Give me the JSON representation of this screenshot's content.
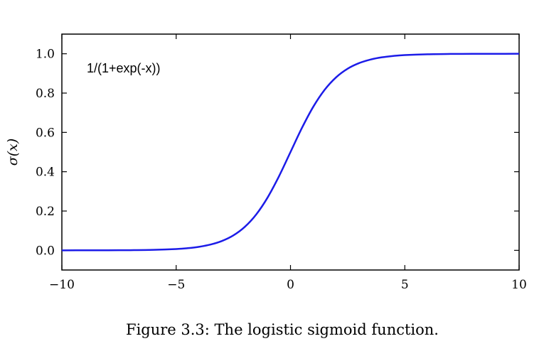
{
  "chart_data": {
    "type": "line",
    "x": [
      -10,
      -9,
      -8,
      -7,
      -6,
      -5,
      -4.5,
      -4,
      -3.5,
      -3,
      -2.5,
      -2,
      -1.5,
      -1,
      -0.5,
      0,
      0.5,
      1,
      1.5,
      2,
      2.5,
      3,
      3.5,
      4,
      4.5,
      5,
      6,
      7,
      8,
      9,
      10
    ],
    "series": [
      {
        "values": [
          4.54e-05,
          0.0001234,
          0.0003354,
          0.000911,
          0.002473,
          0.006693,
          0.010987,
          0.017986,
          0.029312,
          0.047426,
          0.075858,
          0.119203,
          0.182426,
          0.268941,
          0.377541,
          0.5,
          0.622459,
          0.731059,
          0.817574,
          0.880797,
          0.924142,
          0.952574,
          0.970688,
          0.982014,
          0.989013,
          0.993307,
          0.997527,
          0.999089,
          0.999665,
          0.999877,
          0.999955
        ],
        "color": "#1c1ce8"
      }
    ],
    "xlim": [
      -10,
      10
    ],
    "ylim": [
      -0.1,
      1.1
    ],
    "xticks": [
      -10,
      -5,
      0,
      5,
      10
    ],
    "xtick_labels": [
      "−10",
      "−5",
      "0",
      "5",
      "10"
    ],
    "yticks": [
      0.0,
      0.2,
      0.4,
      0.6,
      0.8,
      1.0
    ],
    "ytick_labels": [
      "0.0",
      "0.2",
      "0.4",
      "0.6",
      "0.8",
      "1.0"
    ],
    "ylabel": "σ(x)",
    "annotation": "1/(1+exp(-x))",
    "grid": false
  },
  "caption": "Figure 3.3: The logistic sigmoid function."
}
